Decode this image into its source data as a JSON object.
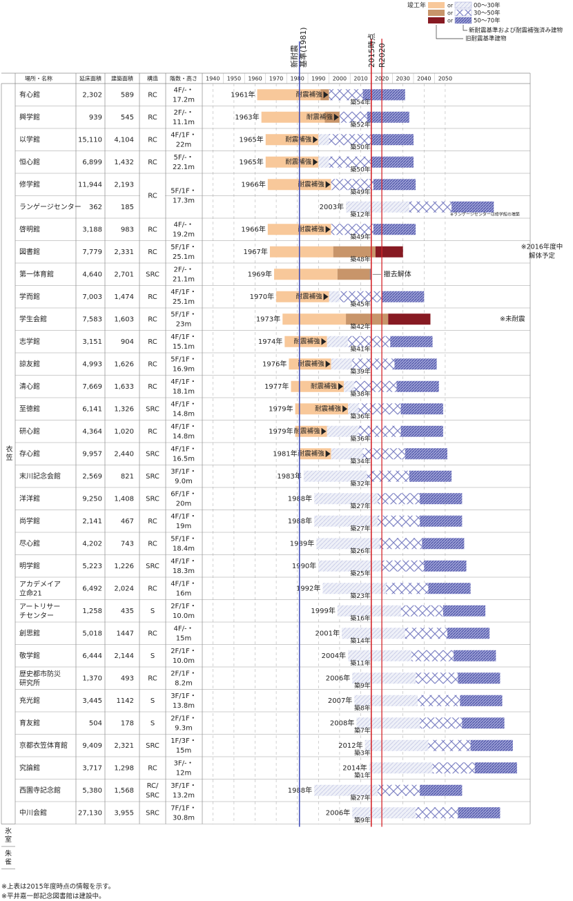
{
  "legend": {
    "completion_label": "竣工年",
    "or": "or",
    "age_labels": [
      "00～30年",
      "30～50年",
      "50～70年"
    ],
    "new_label": "新耐震基準および耐震補強済み建物",
    "old_label": "旧耐震基準建物",
    "colors_old": [
      "#f8c89a",
      "#c8956a",
      "#871a22"
    ],
    "colors_new": [
      "#e8eaf5",
      "#b9bddf",
      "#6468b7"
    ]
  },
  "headers": {
    "location_name": "場所・名称",
    "floor_area": "延床面積",
    "building_area": "建築面積",
    "structure": "構造",
    "floors_height": "階数・高さ"
  },
  "years": [
    "1940",
    "1950",
    "1960",
    "1970",
    "1980",
    "1990",
    "2000",
    "2010",
    "2020",
    "2030",
    "2040",
    "2050"
  ],
  "markers": {
    "quake_label": "新耐震基準(1981)",
    "current_label": "2015時点",
    "r2020_label": "R2020",
    "quake_year": 1981,
    "current_year": 2015,
    "r2020_year": 2020
  },
  "campuses": [
    {
      "name": "衣笠",
      "rows": 33
    },
    {
      "name": "氷室",
      "rows": 1
    },
    {
      "name": "朱雀",
      "rows": 1
    }
  ],
  "chart_data": {
    "type": "bar",
    "title": "",
    "x_range": [
      1935,
      2057
    ],
    "reinforce_label": "耐震補強",
    "age_prefix": "築",
    "buildings": [
      {
        "name": "有心館",
        "floor_area": "2,302",
        "bldg_area": "589",
        "structure": "RC",
        "floors": "4F/-・",
        "height": "17.2m",
        "year": 1961,
        "year_label": "1961年",
        "reinforce": 1995,
        "age": "築54年",
        "state": "reinforced"
      },
      {
        "name": "興学館",
        "floor_area": "939",
        "bldg_area": "545",
        "structure": "RC",
        "floors": "2F/-・",
        "height": "11.1m",
        "year": 1963,
        "year_label": "1963年",
        "reinforce": 2000,
        "age": "築52年",
        "state": "reinforced"
      },
      {
        "name": "以学館",
        "floor_area": "15,110",
        "bldg_area": "4,104",
        "structure": "RC",
        "floors": "4F/1F・",
        "height": "22m",
        "year": 1965,
        "year_label": "1965年",
        "reinforce": 1990,
        "age": "築50年",
        "state": "reinforced"
      },
      {
        "name": "恒心館",
        "floor_area": "6,899",
        "bldg_area": "1,432",
        "structure": "RC",
        "floors": "5F/-・",
        "height": "22.1m",
        "year": 1965,
        "year_label": "1965年",
        "reinforce": 1990,
        "age": "築50年",
        "state": "reinforced"
      },
      {
        "name": "修学館",
        "floor_area": "11,944",
        "bldg_area": "2,193",
        "structure": "RC",
        "floors": "5F/1F・",
        "height": "17.3m",
        "year": 1966,
        "year_label": "1966年",
        "reinforce": 1996,
        "age": "築49年",
        "state": "reinforced",
        "merge_down": true
      },
      {
        "name": "ランゲージセンター",
        "floor_area": "362",
        "bldg_area": "185",
        "structure": "",
        "floors": "",
        "height": "",
        "year": 2003,
        "year_label": "2003年",
        "age": "築12年",
        "state": "new",
        "note": "※ランゲージセンターは修学館の増築"
      },
      {
        "name": "啓明館",
        "floor_area": "3,188",
        "bldg_area": "983",
        "structure": "RC",
        "floors": "4F/-・",
        "height": "19.2m",
        "year": 1966,
        "year_label": "1966年",
        "reinforce": 1996,
        "age": "築49年",
        "state": "reinforced"
      },
      {
        "name": "図書館",
        "floor_area": "7,779",
        "bldg_area": "2,331",
        "structure": "RC",
        "floors": "5F/1F・",
        "height": "25.1m",
        "year": 1967,
        "year_label": "1967年",
        "age": "築48年",
        "state": "demolish",
        "end": 2030,
        "note": "※2016年度中 解体予定"
      },
      {
        "name": "第一体育館",
        "floor_area": "4,640",
        "bldg_area": "2,701",
        "structure": "SRC",
        "floors": "2F/-・",
        "height": "21.1m",
        "year": 1969,
        "year_label": "1969年",
        "age": "",
        "state": "removed",
        "end": 2015,
        "note": "撤去解体"
      },
      {
        "name": "学而館",
        "floor_area": "7,003",
        "bldg_area": "1,474",
        "structure": "RC",
        "floors": "4F/1F・",
        "height": "25.1m",
        "year": 1970,
        "year_label": "1970年",
        "reinforce": 1995,
        "age": "築45年",
        "state": "reinforced"
      },
      {
        "name": "学生会館",
        "floor_area": "7,583",
        "bldg_area": "1,603",
        "structure": "RC",
        "floors": "5F/1F・",
        "height": "23m",
        "year": 1973,
        "year_label": "1973年",
        "age": "築42年",
        "state": "unsafe",
        "end": 2043,
        "note": "※未耐震"
      },
      {
        "name": "志学館",
        "floor_area": "3,151",
        "bldg_area": "904",
        "structure": "RC",
        "floors": "4F/1F・",
        "height": "15.1m",
        "year": 1974,
        "year_label": "1974年",
        "reinforce": 1994,
        "age": "築41年",
        "state": "reinforced"
      },
      {
        "name": "諒友館",
        "floor_area": "4,993",
        "bldg_area": "1,626",
        "structure": "RC",
        "floors": "5F/1F・",
        "height": "16.9m",
        "year": 1976,
        "year_label": "1976年",
        "reinforce": 1996,
        "age": "築39年",
        "state": "reinforced"
      },
      {
        "name": "清心館",
        "floor_area": "7,669",
        "bldg_area": "1,633",
        "structure": "RC",
        "floors": "4F/1F・",
        "height": "18.1m",
        "year": 1977,
        "year_label": "1977年",
        "reinforce": 2002,
        "age": "築38年",
        "state": "reinforced"
      },
      {
        "name": "至徳館",
        "floor_area": "6,141",
        "bldg_area": "1,326",
        "structure": "SRC",
        "floors": "4F/1F・",
        "height": "14.8m",
        "year": 1979,
        "year_label": "1979年",
        "reinforce": 2004,
        "age": "築36年",
        "state": "reinforced"
      },
      {
        "name": "研心館",
        "floor_area": "4,364",
        "bldg_area": "1,020",
        "structure": "RC",
        "floors": "4F/1F・",
        "height": "14.8m",
        "year": 1979,
        "year_label": "1979年",
        "reinforce": 1994,
        "age": "築36年",
        "state": "reinforced"
      },
      {
        "name": "存心館",
        "floor_area": "9,957",
        "bldg_area": "2,440",
        "structure": "SRC",
        "floors": "4F/1F・",
        "height": "16.5m",
        "year": 1981,
        "year_label": "1981年",
        "reinforce": 1996,
        "age": "築34年",
        "state": "reinforced"
      },
      {
        "name": "末川記念会館",
        "floor_area": "2,569",
        "bldg_area": "821",
        "structure": "SRC",
        "floors": "3F/1F・",
        "height": "9.0m",
        "year": 1983,
        "year_label": "1983年",
        "age": "築32年",
        "state": "new"
      },
      {
        "name": "洋洋館",
        "floor_area": "9,250",
        "bldg_area": "1,408",
        "structure": "SRC",
        "floors": "6F/1F・",
        "height": "20m",
        "year": 1988,
        "year_label": "1988年",
        "age": "築27年",
        "state": "new"
      },
      {
        "name": "尚学館",
        "floor_area": "2,141",
        "bldg_area": "467",
        "structure": "RC",
        "floors": "4F/1F・",
        "height": "19m",
        "year": 1988,
        "year_label": "1988年",
        "age": "築27年",
        "state": "new"
      },
      {
        "name": "尽心館",
        "floor_area": "4,202",
        "bldg_area": "743",
        "structure": "RC",
        "floors": "5F/1F・",
        "height": "18.4m",
        "year": 1989,
        "year_label": "1989年",
        "age": "築26年",
        "state": "new"
      },
      {
        "name": "明学館",
        "floor_area": "5,223",
        "bldg_area": "1,226",
        "structure": "SRC",
        "floors": "4F/1F・",
        "height": "18.3m",
        "year": 1990,
        "year_label": "1990年",
        "age": "築25年",
        "state": "new"
      },
      {
        "name": "アカデメイア立命21",
        "floor_area": "6,492",
        "bldg_area": "2,024",
        "structure": "RC",
        "floors": "4F/1F・",
        "height": "16m",
        "year": 1992,
        "year_label": "1992年",
        "age": "築23年",
        "state": "new"
      },
      {
        "name": "アートリサーチセンター",
        "floor_area": "1,258",
        "bldg_area": "435",
        "structure": "S",
        "floors": "2F/1F・",
        "height": "10.0m",
        "year": 1999,
        "year_label": "1999年",
        "age": "築16年",
        "state": "new"
      },
      {
        "name": "創思館",
        "floor_area": "5,018",
        "bldg_area": "1447",
        "structure": "RC",
        "floors": "4F/-・",
        "height": "15m",
        "year": 2001,
        "year_label": "2001年",
        "age": "築14年",
        "state": "new"
      },
      {
        "name": "敬学館",
        "floor_area": "6,444",
        "bldg_area": "2,144",
        "structure": "S",
        "floors": "2F/1F・",
        "height": "10.0m",
        "year": 2004,
        "year_label": "2004年",
        "age": "築11年",
        "state": "new"
      },
      {
        "name": "歴史都市防災研究所",
        "floor_area": "1,370",
        "bldg_area": "493",
        "structure": "RC",
        "floors": "2F/1F・",
        "height": "8.2m",
        "year": 2006,
        "year_label": "2006年",
        "age": "築9年",
        "state": "new"
      },
      {
        "name": "充光館",
        "floor_area": "3,445",
        "bldg_area": "1142",
        "structure": "S",
        "floors": "3F/1F・",
        "height": "13.8m",
        "year": 2007,
        "year_label": "2007年",
        "age": "築8年",
        "state": "new"
      },
      {
        "name": "育友館",
        "floor_area": "504",
        "bldg_area": "178",
        "structure": "S",
        "floors": "2F/1F・",
        "height": "9.3m",
        "year": 2008,
        "year_label": "2008年",
        "age": "築7年",
        "state": "new"
      },
      {
        "name": "京都衣笠体育館",
        "floor_area": "9,409",
        "bldg_area": "2,321",
        "structure": "SRC",
        "floors": "1F/3F・",
        "height": "15m",
        "year": 2012,
        "year_label": "2012年",
        "age": "築3年",
        "state": "new"
      },
      {
        "name": "究論館",
        "floor_area": "3,717",
        "bldg_area": "1,298",
        "structure": "RC",
        "floors": "3F/-・",
        "height": "12m",
        "year": 2014,
        "year_label": "2014年",
        "age": "築1年",
        "state": "new"
      },
      {
        "name": "西園寺記念館",
        "floor_area": "5,380",
        "bldg_area": "1,568",
        "structure": "RC/SRC",
        "floors": "3F/1F・",
        "height": "13.2m",
        "year": 1988,
        "year_label": "1988年",
        "age": "築27年",
        "state": "new"
      },
      {
        "name": "中川会館",
        "floor_area": "27,130",
        "bldg_area": "3,955",
        "structure": "SRC",
        "floors": "7F/1F・",
        "height": "30.8m",
        "year": 2006,
        "year_label": "2006年",
        "age": "築9年",
        "state": "new"
      }
    ]
  },
  "footnotes": [
    "※上表は2015年度時点の情報を示す。",
    "※平井嘉一郎記念図書館は建設中。"
  ]
}
